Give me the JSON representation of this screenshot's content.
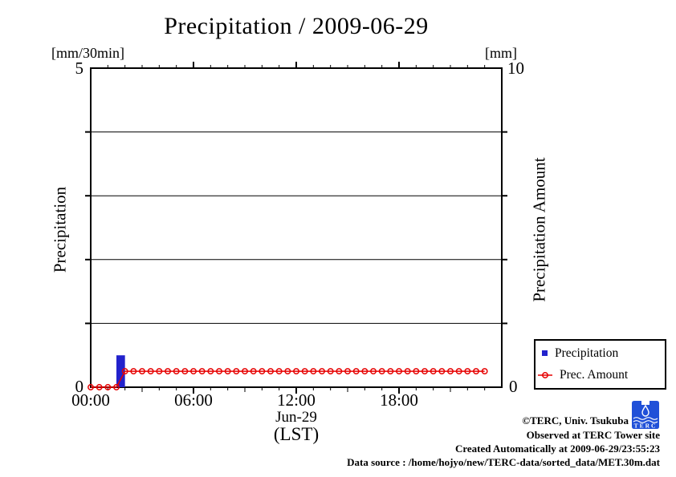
{
  "title": "Precipitation / 2009-06-29",
  "colors": {
    "bar_blue": "#2222cc",
    "line_red": "#e60000",
    "axis_black": "#000000",
    "logo_blue": "#2050d8"
  },
  "axes": {
    "left": {
      "unit": "[mm/30min]",
      "label": "Precipitation",
      "max_label": "5",
      "min_label": "0"
    },
    "right": {
      "unit": "[mm]",
      "label": "Precipitation Amount",
      "max_label": "10",
      "min_label": "0"
    },
    "x": {
      "tick_labels": [
        "00:00",
        "06:00",
        "12:00",
        "18:00"
      ],
      "date_label": "Jun-29",
      "tz_label": "(LST)"
    }
  },
  "legend": {
    "items": [
      {
        "label": "Precipitation",
        "marker": "blue-square"
      },
      {
        "label": "Prec. Amount",
        "marker": "red-circle-line"
      }
    ]
  },
  "footer": {
    "lines": [
      "©TERC, Univ. Tsukuba",
      "Observed at TERC Tower site",
      "Created Automatically at 2009-06-29/23:55:23",
      "Data source : /home/hojyo/new/TERC-data/sorted_data/MET.30m.dat"
    ]
  },
  "logo": {
    "text": "TERC"
  },
  "chart_data": {
    "type": "bar",
    "title": "Precipitation / 2009-06-29",
    "x_axis": {
      "label": "time (LST), Jun-29",
      "xlim_hours": [
        0,
        24
      ],
      "major_ticks_hours": [
        0,
        6,
        12,
        18
      ],
      "minor_tick_step_hours": 1
    },
    "left_axis": {
      "label": "Precipitation",
      "unit": "mm/30min",
      "ylim": [
        0,
        5
      ]
    },
    "right_axis": {
      "label": "Precipitation Amount",
      "unit": "mm",
      "ylim": [
        0,
        10
      ]
    },
    "gridlines_left_values": [
      1,
      2,
      3,
      4
    ],
    "grid": "horizontal-only",
    "legend_position": "outside-bottom-right",
    "series": [
      {
        "name": "Precipitation",
        "type": "bar",
        "axis": "left",
        "color": "#2222cc",
        "bar_width_hours": 0.5,
        "points": [
          {
            "x": 2.0,
            "y": 0.5
          }
        ]
      },
      {
        "name": "Prec. Amount",
        "type": "line",
        "axis": "right",
        "color": "#e60000",
        "marker": "open-circle",
        "x": [
          0,
          0.5,
          1,
          1.5,
          2,
          2.5,
          3,
          3.5,
          4,
          4.5,
          5,
          5.5,
          6,
          6.5,
          7,
          7.5,
          8,
          8.5,
          9,
          9.5,
          10,
          10.5,
          11,
          11.5,
          12,
          12.5,
          13,
          13.5,
          14,
          14.5,
          15,
          15.5,
          16,
          16.5,
          17,
          17.5,
          18,
          18.5,
          19,
          19.5,
          20,
          20.5,
          21,
          21.5,
          22,
          22.5,
          23
        ],
        "y": [
          0,
          0,
          0,
          0,
          0.5,
          0.5,
          0.5,
          0.5,
          0.5,
          0.5,
          0.5,
          0.5,
          0.5,
          0.5,
          0.5,
          0.5,
          0.5,
          0.5,
          0.5,
          0.5,
          0.5,
          0.5,
          0.5,
          0.5,
          0.5,
          0.5,
          0.5,
          0.5,
          0.5,
          0.5,
          0.5,
          0.5,
          0.5,
          0.5,
          0.5,
          0.5,
          0.5,
          0.5,
          0.5,
          0.5,
          0.5,
          0.5,
          0.5,
          0.5,
          0.5,
          0.5,
          0.5
        ]
      }
    ]
  }
}
